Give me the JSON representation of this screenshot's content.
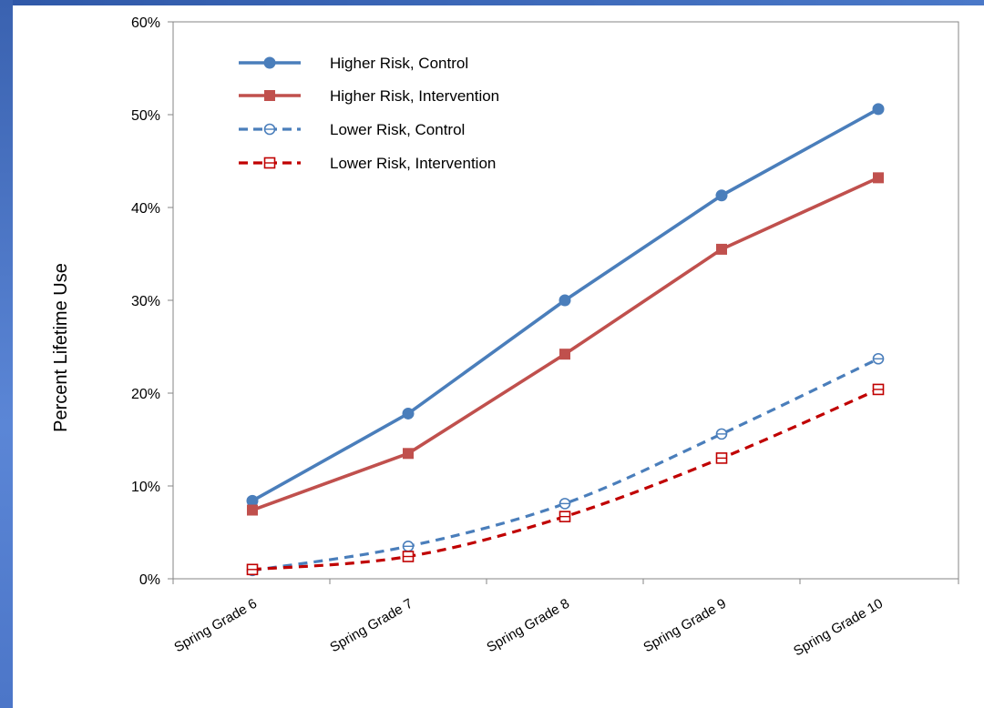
{
  "chart_data": {
    "type": "line",
    "title": "",
    "xlabel": "",
    "ylabel": "Percent Lifetime Use",
    "categories": [
      "Spring Grade 6",
      "Spring Grade 7",
      "Spring Grade 8",
      "Spring Grade 9",
      "Spring Grade 10"
    ],
    "ylim": [
      0,
      60
    ],
    "yticks": [
      "0%",
      "10%",
      "20%",
      "30%",
      "40%",
      "50%",
      "60%"
    ],
    "ytick_values": [
      0,
      10,
      20,
      30,
      40,
      50,
      60
    ],
    "grid": false,
    "legend_position": "top-left",
    "series": [
      {
        "name": "Higher Risk, Control",
        "values": [
          8.4,
          17.8,
          30.0,
          41.3,
          50.6
        ],
        "color": "#4a7ebb",
        "line_style": "solid",
        "marker": "filled-circle"
      },
      {
        "name": "Higher Risk, Intervention",
        "values": [
          7.4,
          13.5,
          24.2,
          35.5,
          43.2
        ],
        "color": "#c0504d",
        "line_style": "solid",
        "marker": "filled-square"
      },
      {
        "name": "Lower Risk, Control",
        "values": [
          0.9,
          3.5,
          8.1,
          15.6,
          23.7
        ],
        "color": "#4a7ebb",
        "line_style": "dashed",
        "marker": "open-circle"
      },
      {
        "name": "Lower Risk, Intervention",
        "values": [
          1.0,
          2.4,
          6.7,
          13.0,
          20.4
        ],
        "color": "#c00000",
        "line_style": "dashed",
        "marker": "open-square"
      }
    ]
  },
  "theme": {
    "frame_color": "#4a76c6",
    "axis_color": "#868686"
  }
}
